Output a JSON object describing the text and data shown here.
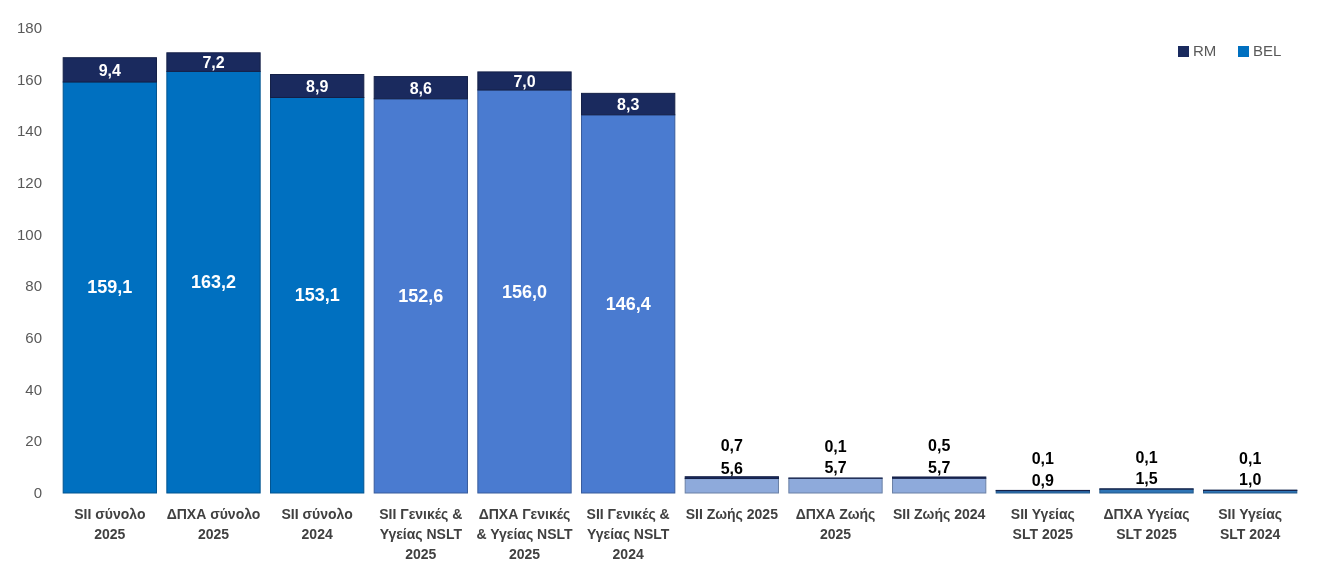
{
  "chart_data": {
    "type": "bar",
    "stacked": true,
    "categories": [
      "SII σύνολο 2025",
      "ΔΠΧΑ σύνολο 2025",
      "SII σύνολο 2024",
      "SII Γενικές & Υγείας NSLT 2025",
      "ΔΠΧΑ Γενικές & Υγείας NSLT 2025",
      "SII Γενικές & Υγείας NSLT 2024",
      "SII Ζωής 2025",
      "ΔΠΧΑ Ζωής 2025",
      "SII Ζωής 2024",
      "SII Υγείας SLT 2025",
      "ΔΠΧΑ Υγείας SLT 2025",
      "SII Υγείας SLT 2024"
    ],
    "series": [
      {
        "name": "BEL",
        "color": "#0070c0",
        "colors": [
          "#0070c0",
          "#0070c0",
          "#0070c0",
          "#4a7bd0",
          "#4a7bd0",
          "#4a7bd0",
          "#8eaadb",
          "#8eaadb",
          "#8eaadb",
          "#2e75b6",
          "#2e75b6",
          "#2e75b6"
        ],
        "values": [
          159.1,
          163.2,
          153.1,
          152.6,
          156.0,
          146.4,
          5.6,
          5.7,
          5.7,
          0.9,
          1.5,
          1.0
        ],
        "value_labels": [
          "159,1",
          "163,2",
          "153,1",
          "152,6",
          "156,0",
          "146,4",
          "5,6",
          "5,7",
          "5,7",
          "0,9",
          "1,5",
          "1,0"
        ]
      },
      {
        "name": "RM",
        "color": "#1a2a5e",
        "values": [
          9.4,
          7.2,
          8.9,
          8.6,
          7.0,
          8.3,
          0.7,
          0.1,
          0.5,
          0.1,
          0.1,
          0.1
        ],
        "value_labels": [
          "9,4",
          "7,2",
          "8,9",
          "8,6",
          "7,0",
          "8,3",
          "0,7",
          "0,1",
          "0,5",
          "0,1",
          "0,1",
          "0,1"
        ]
      }
    ],
    "ylim": [
      0,
      180
    ],
    "yticks": [
      0,
      20,
      40,
      60,
      80,
      100,
      120,
      140,
      160,
      180
    ],
    "grid": false,
    "legend": "top right"
  }
}
